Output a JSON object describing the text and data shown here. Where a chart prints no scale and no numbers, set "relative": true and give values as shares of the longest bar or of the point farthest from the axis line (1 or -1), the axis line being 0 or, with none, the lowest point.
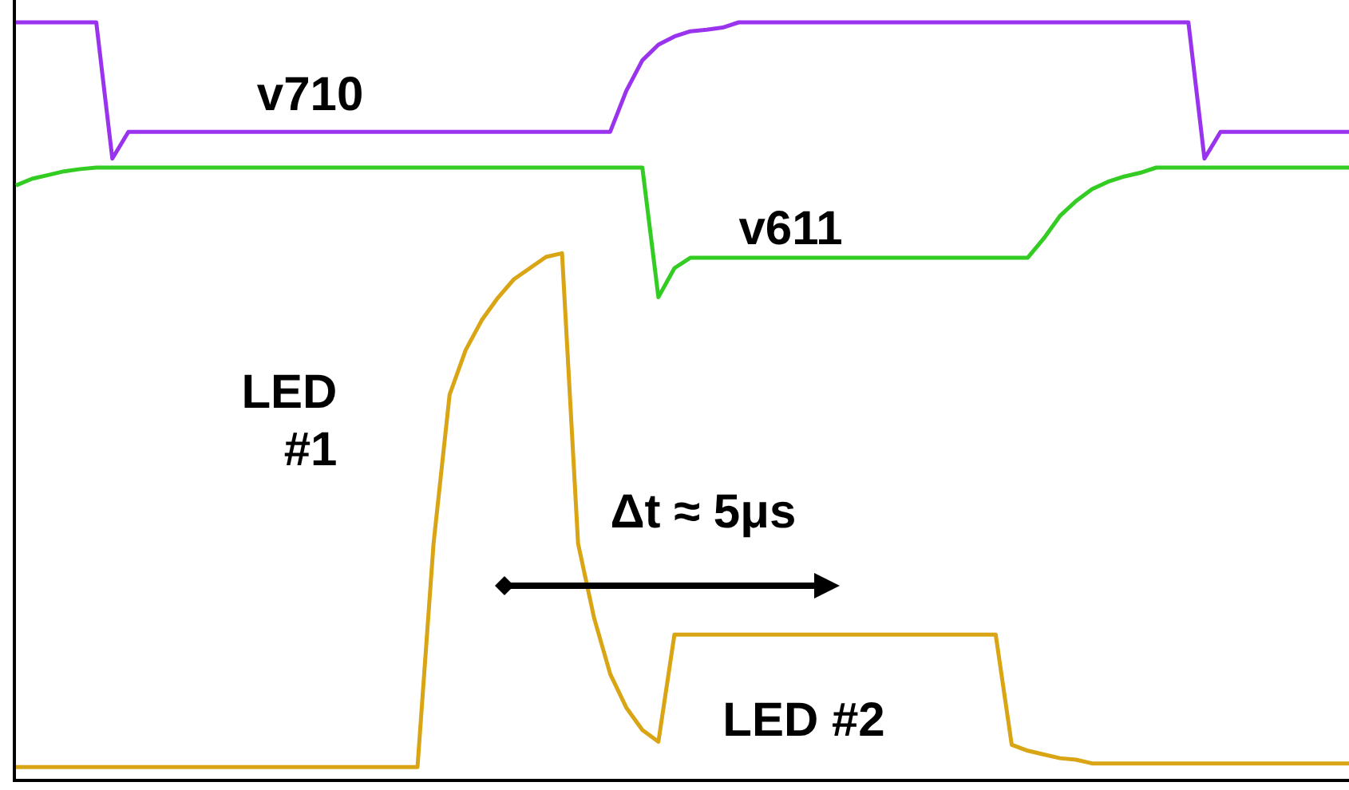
{
  "chart_data": {
    "type": "line",
    "relative": true,
    "legend": false,
    "grid": false,
    "marker": "none",
    "line_style": "solid",
    "categories": [
      null,
      null,
      null,
      null,
      null,
      null,
      null,
      null,
      null,
      null,
      null,
      null,
      null,
      null,
      null,
      null,
      null,
      null,
      null,
      null,
      null,
      null,
      null,
      null,
      null,
      null,
      null,
      null,
      null,
      null,
      null,
      null,
      null,
      null,
      null,
      null,
      null,
      null,
      null,
      null,
      null,
      null,
      null,
      null,
      null,
      null,
      null,
      null,
      null,
      null,
      null,
      null,
      null,
      null,
      null,
      null,
      null,
      null,
      null,
      null,
      null,
      null,
      null,
      null,
      null,
      null,
      null,
      null,
      null,
      null,
      null,
      null,
      null,
      null,
      null,
      null,
      null,
      null,
      null,
      null,
      null,
      null,
      null,
      null
    ],
    "series": [
      {
        "name": "v710",
        "color": "#9933ee",
        "values": [
          1,
          1,
          1,
          1,
          1,
          1,
          0.817,
          0.853,
          0.853,
          0.853,
          0.853,
          0.853,
          0.853,
          0.853,
          0.853,
          0.853,
          0.853,
          0.853,
          0.853,
          0.853,
          0.853,
          0.853,
          0.853,
          0.853,
          0.853,
          0.853,
          0.853,
          0.853,
          0.853,
          0.853,
          0.853,
          0.853,
          0.853,
          0.853,
          0.853,
          0.853,
          0.853,
          0.853,
          0.908,
          0.949,
          0.97,
          0.981,
          0.988,
          0.99,
          0.993,
          1,
          1,
          1,
          1,
          1,
          1,
          1,
          1,
          1,
          1,
          1,
          1,
          1,
          1,
          1,
          1,
          1,
          1,
          1,
          1,
          1,
          1,
          1,
          1,
          1,
          1,
          1,
          1,
          1,
          0.817,
          0.853,
          0.853,
          0.853,
          0.853,
          0.853,
          0.853,
          0.853,
          0.853,
          0.853
        ]
      },
      {
        "name": "v611",
        "color": "#33cc22",
        "values": [
          0.781,
          0.79,
          0.795,
          0.8,
          0.803,
          0.805,
          0.805,
          0.805,
          0.805,
          0.805,
          0.805,
          0.805,
          0.805,
          0.805,
          0.805,
          0.805,
          0.805,
          0.805,
          0.805,
          0.805,
          0.805,
          0.805,
          0.805,
          0.805,
          0.805,
          0.805,
          0.805,
          0.805,
          0.805,
          0.805,
          0.805,
          0.805,
          0.805,
          0.805,
          0.805,
          0.805,
          0.805,
          0.805,
          0.805,
          0.805,
          0.631,
          0.67,
          0.684,
          0.684,
          0.684,
          0.684,
          0.684,
          0.684,
          0.684,
          0.684,
          0.684,
          0.684,
          0.684,
          0.684,
          0.684,
          0.684,
          0.684,
          0.684,
          0.684,
          0.684,
          0.684,
          0.684,
          0.684,
          0.684,
          0.71,
          0.74,
          0.76,
          0.776,
          0.786,
          0.793,
          0.798,
          0.805,
          0.805,
          0.805,
          0.805,
          0.805,
          0.805,
          0.805,
          0.805,
          0.805,
          0.805,
          0.805,
          0.805,
          0.805
        ]
      },
      {
        "color": "#d9a514",
        "values": [
          0,
          0,
          0,
          0,
          0,
          0,
          0,
          0,
          0,
          0,
          0,
          0,
          0,
          0,
          0,
          0,
          0,
          0,
          0,
          0,
          0,
          0,
          0,
          0,
          0,
          0,
          0.3,
          0.5,
          0.56,
          0.6,
          0.63,
          0.655,
          0.67,
          0.685,
          0.69,
          0.3,
          0.2,
          0.125,
          0.08,
          0.05,
          0.034,
          0.178,
          0.178,
          0.178,
          0.178,
          0.178,
          0.178,
          0.178,
          0.178,
          0.178,
          0.178,
          0.178,
          0.178,
          0.178,
          0.178,
          0.178,
          0.178,
          0.178,
          0.178,
          0.178,
          0.178,
          0.178,
          0.03,
          0.022,
          0.017,
          0.012,
          0.01,
          0.005,
          0.005,
          0.005,
          0.005,
          0.005,
          0.005,
          0.005,
          0.005,
          0.005,
          0.005,
          0.005,
          0.005,
          0.005,
          0.005,
          0.005,
          0.005,
          0.005
        ]
      }
    ],
    "annotations": [
      "LED\n#1",
      "Δt ≈ 5μs",
      "LED #2"
    ]
  }
}
